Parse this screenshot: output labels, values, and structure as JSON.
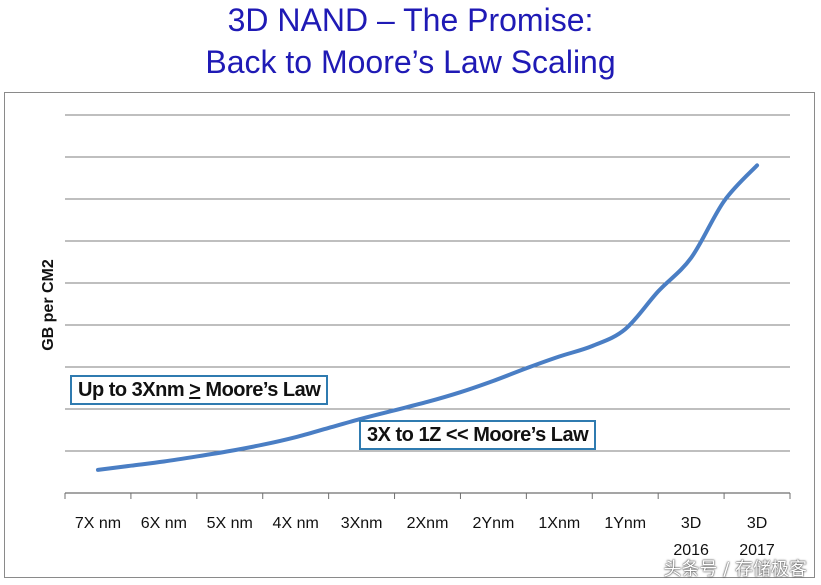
{
  "title": {
    "line1": "3D NAND – The Promise:",
    "line2": "Back to Moore’s Law Scaling"
  },
  "annotations": {
    "first_prefix": "Up to 3Xnm ",
    "first_ge": ">",
    "first_suffix": " Moore’s Law",
    "second": "3X to 1Z << Moore’s Law"
  },
  "watermark": "头条号 / 存储极客",
  "colors": {
    "title": "#1f1ab5",
    "line": "#4a7ec4",
    "grid": "#7f7f7f",
    "annotation_border": "#2f7bb0"
  },
  "chart_data": {
    "type": "line",
    "categories": [
      "7X nm",
      "6X nm",
      "5X nm",
      "4X nm",
      "3Xnm",
      "2Xnm",
      "2Ynm",
      "1Xnm",
      "1Ynm",
      "3D\n2016",
      "3D\n2017"
    ],
    "ylabel": "GB per CM2",
    "xlabel": "",
    "ylim": [
      0,
      9
    ],
    "grid": true,
    "y_tick_labels_shown": false,
    "series": [
      {
        "x": [
          0,
          0.5,
          1,
          1.5,
          2,
          2.5,
          3,
          3.5,
          4,
          4.5,
          5,
          5.5,
          6,
          6.5,
          7,
          7.5,
          8,
          8.5,
          9,
          9.5,
          10
        ],
        "values": [
          0.55,
          0.65,
          0.75,
          0.87,
          1.0,
          1.15,
          1.33,
          1.55,
          1.77,
          1.97,
          2.17,
          2.4,
          2.67,
          2.97,
          3.25,
          3.5,
          3.9,
          4.8,
          5.6,
          6.95,
          7.8
        ]
      }
    ]
  }
}
